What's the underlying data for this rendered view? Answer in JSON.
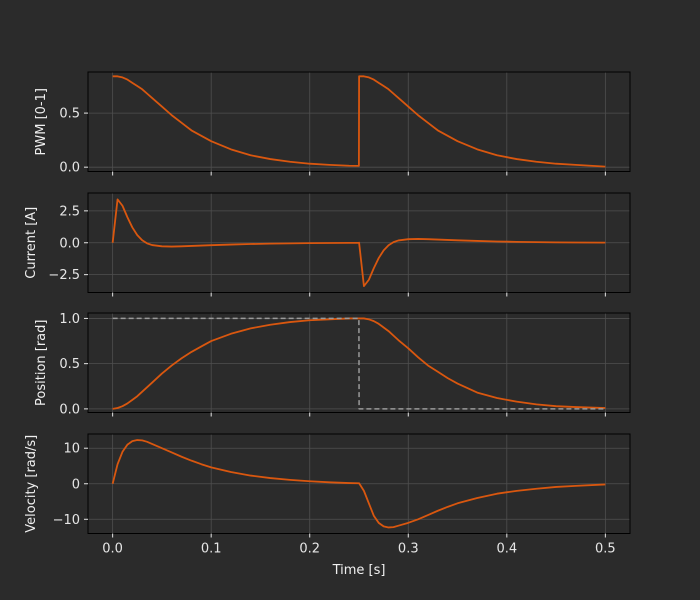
{
  "colors": {
    "background": "#2b2b2b",
    "axes_face": "#2b2b2b",
    "spine": "#000000",
    "grid": "#4f4f4f",
    "tick_text": "#e6e6e6",
    "series": "#d9570f",
    "reference": "#9a9a9a"
  },
  "chart_data": {
    "type": "line",
    "xlabel": "Time [s]",
    "xlim": [
      -0.025,
      0.525
    ],
    "xticks": [
      0.0,
      0.1,
      0.2,
      0.3,
      0.4,
      0.5
    ],
    "xtick_labels": [
      "0.0",
      "0.1",
      "0.2",
      "0.3",
      "0.4",
      "0.5"
    ],
    "grid": true,
    "time": [
      0,
      0.005,
      0.01,
      0.015,
      0.02,
      0.025,
      0.03,
      0.035,
      0.04,
      0.05,
      0.06,
      0.07,
      0.08,
      0.09,
      0.1,
      0.12,
      0.14,
      0.16,
      0.18,
      0.2,
      0.22,
      0.24,
      0.2499,
      0.2501,
      0.255,
      0.26,
      0.265,
      0.27,
      0.275,
      0.28,
      0.285,
      0.29,
      0.3,
      0.31,
      0.32,
      0.33,
      0.34,
      0.35,
      0.37,
      0.39,
      0.41,
      0.43,
      0.45,
      0.47,
      0.5
    ],
    "subplots": [
      {
        "ylabel": "PWM [0-1]",
        "ylim": [
          -0.04,
          0.88
        ],
        "yticks": [
          0.0,
          0.5
        ],
        "ytick_labels": [
          "0.0",
          "0.5"
        ],
        "series": [
          {
            "style": "solid",
            "values": [
              0.84,
              0.84,
              0.83,
              0.81,
              0.78,
              0.75,
              0.72,
              0.68,
              0.64,
              0.56,
              0.48,
              0.41,
              0.34,
              0.29,
              0.24,
              0.165,
              0.11,
              0.075,
              0.05,
              0.032,
              0.021,
              0.013,
              0.012,
              0.84,
              0.84,
              0.83,
              0.81,
              0.78,
              0.75,
              0.72,
              0.68,
              0.64,
              0.56,
              0.48,
              0.41,
              0.34,
              0.29,
              0.24,
              0.165,
              0.11,
              0.075,
              0.05,
              0.032,
              0.021,
              0.005
            ]
          }
        ]
      },
      {
        "ylabel": "Current [A]",
        "ylim": [
          -3.9,
          3.9
        ],
        "yticks": [
          -2.5,
          0.0,
          2.5
        ],
        "ytick_labels": [
          "−2.5",
          "0.0",
          "2.5"
        ],
        "series": [
          {
            "style": "solid",
            "values": [
              0,
              3.4,
              2.9,
              2.0,
              1.2,
              0.6,
              0.2,
              -0.05,
              -0.18,
              -0.28,
              -0.3,
              -0.28,
              -0.25,
              -0.22,
              -0.19,
              -0.14,
              -0.1,
              -0.07,
              -0.05,
              -0.03,
              -0.02,
              -0.01,
              -0.01,
              0,
              -3.4,
              -2.9,
              -2.0,
              -1.2,
              -0.6,
              -0.2,
              0.05,
              0.18,
              0.28,
              0.3,
              0.28,
              0.25,
              0.22,
              0.19,
              0.14,
              0.1,
              0.07,
              0.05,
              0.03,
              0.02,
              0.01
            ]
          }
        ]
      },
      {
        "ylabel": "Position [rad]",
        "ylim": [
          -0.04,
          1.06
        ],
        "yticks": [
          0.0,
          0.5,
          1.0
        ],
        "ytick_labels": [
          "0.0",
          "0.5",
          "1.0"
        ],
        "series": [
          {
            "style": "solid",
            "values": [
              0,
              0.01,
              0.03,
              0.06,
              0.1,
              0.14,
              0.19,
              0.24,
              0.29,
              0.39,
              0.48,
              0.56,
              0.63,
              0.69,
              0.75,
              0.83,
              0.89,
              0.93,
              0.96,
              0.98,
              0.99,
              1.0,
              1.0,
              1.0,
              1.0,
              0.99,
              0.97,
              0.94,
              0.9,
              0.86,
              0.81,
              0.76,
              0.67,
              0.57,
              0.48,
              0.41,
              0.34,
              0.28,
              0.18,
              0.12,
              0.08,
              0.05,
              0.03,
              0.02,
              0.01
            ]
          },
          {
            "style": "dashed",
            "values": [
              1,
              1,
              1,
              1,
              1,
              1,
              1,
              1,
              1,
              1,
              1,
              1,
              1,
              1,
              1,
              1,
              1,
              1,
              1,
              1,
              1,
              1,
              1,
              0,
              0,
              0,
              0,
              0,
              0,
              0,
              0,
              0,
              0,
              0,
              0,
              0,
              0,
              0,
              0,
              0,
              0,
              0,
              0,
              0,
              0
            ]
          }
        ]
      },
      {
        "ylabel": "Velocity [rad/s]",
        "ylim": [
          -14,
          14
        ],
        "yticks": [
          -10,
          0,
          10
        ],
        "ytick_labels": [
          "−10",
          "0",
          "10"
        ],
        "series": [
          {
            "style": "solid",
            "values": [
              0,
              5.5,
              9.0,
              11.0,
              12.0,
              12.3,
              12.2,
              11.8,
              11.2,
              10.0,
              8.8,
              7.6,
              6.5,
              5.5,
              4.6,
              3.3,
              2.3,
              1.6,
              1.1,
              0.7,
              0.4,
              0.2,
              0.15,
              0.15,
              -2.0,
              -5.5,
              -9.0,
              -11.0,
              -12.0,
              -12.3,
              -12.2,
              -11.8,
              -11.0,
              -10.0,
              -8.8,
              -7.6,
              -6.5,
              -5.5,
              -4.0,
              -2.8,
              -2.0,
              -1.4,
              -0.9,
              -0.6,
              -0.2
            ]
          }
        ]
      }
    ]
  }
}
